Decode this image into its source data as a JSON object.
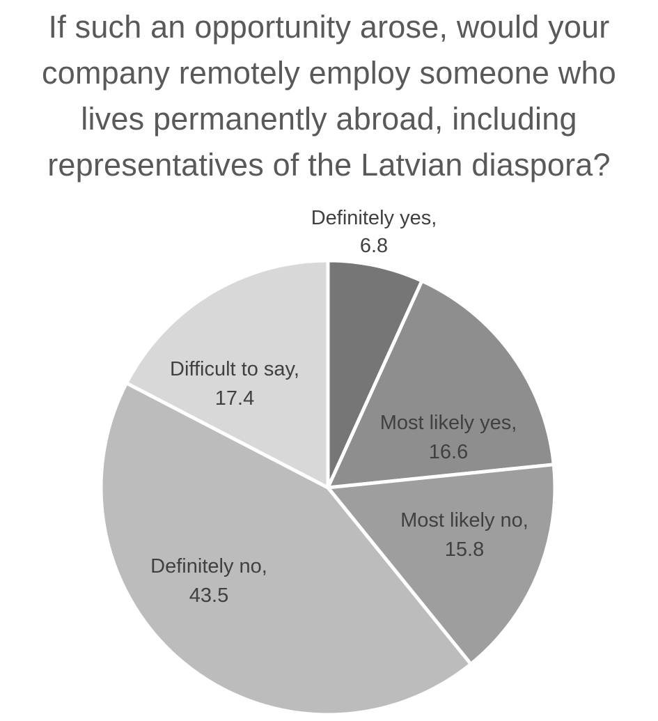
{
  "chart_data": {
    "type": "pie",
    "title_lines": [
      "If such an opportunity arose, would your",
      "company remotely employ someone who",
      "lives permanently abroad, including",
      "representatives of the Latvian diaspora?"
    ],
    "slices": [
      {
        "label": "Definitely yes,",
        "value": 6.8,
        "value_label": "6.8",
        "color": "#767676"
      },
      {
        "label": "Most likely yes,",
        "value": 16.6,
        "value_label": "16.6",
        "color": "#8e8e8e"
      },
      {
        "label": "Most likely no,",
        "value": 15.8,
        "value_label": "15.8",
        "color": "#9e9e9e"
      },
      {
        "label": "Definitely no,",
        "value": 43.5,
        "value_label": "43.5",
        "color": "#bcbcbc"
      },
      {
        "label": "Difficult to say,",
        "value": 17.4,
        "value_label": "17.4",
        "color": "#d8d8d8"
      }
    ],
    "start_angle_deg": 0,
    "direction": "clockwise"
  }
}
